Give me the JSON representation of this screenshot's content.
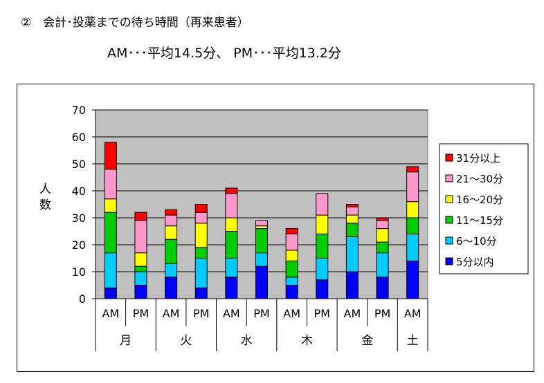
{
  "header": {
    "title": "②　会計･投薬までの待ち時間（再来患者）",
    "summary": "AM･･･平均14.5分、 PM･･･平均13.2分"
  },
  "chart_data": {
    "type": "bar",
    "stacked": true,
    "title": "",
    "ylabel": "人数",
    "ylim": [
      0,
      70
    ],
    "yticks": [
      0,
      10,
      20,
      30,
      40,
      50,
      60,
      70
    ],
    "grid": true,
    "legend_position": "right",
    "categories": [
      {
        "session": "AM",
        "day": "月"
      },
      {
        "session": "PM",
        "day": "月"
      },
      {
        "session": "AM",
        "day": "火"
      },
      {
        "session": "PM",
        "day": "火"
      },
      {
        "session": "AM",
        "day": "水"
      },
      {
        "session": "PM",
        "day": "水"
      },
      {
        "session": "AM",
        "day": "木"
      },
      {
        "session": "PM",
        "day": "木"
      },
      {
        "session": "AM",
        "day": "金"
      },
      {
        "session": "PM",
        "day": "金"
      },
      {
        "session": "AM",
        "day": "土"
      }
    ],
    "day_groups": [
      {
        "label": "月",
        "span": 2
      },
      {
        "label": "火",
        "span": 2
      },
      {
        "label": "水",
        "span": 2
      },
      {
        "label": "木",
        "span": 2
      },
      {
        "label": "金",
        "span": 2
      },
      {
        "label": "土",
        "span": 1
      }
    ],
    "series": [
      {
        "name": "5分以内",
        "color": "#0000ff",
        "values": [
          4,
          5,
          8,
          4,
          8,
          12,
          5,
          7,
          10,
          8,
          14
        ]
      },
      {
        "name": "6～10分",
        "color": "#00ccff",
        "values": [
          13,
          5,
          5,
          11,
          7,
          5,
          3,
          8,
          13,
          9,
          10
        ]
      },
      {
        "name": "11～15分",
        "color": "#00cc00",
        "values": [
          15,
          2,
          9,
          4,
          10,
          9,
          6,
          9,
          5,
          4,
          6
        ]
      },
      {
        "name": "16～20分",
        "color": "#ffff00",
        "values": [
          5,
          5,
          5,
          9,
          5,
          1,
          4,
          7,
          3,
          5,
          6
        ]
      },
      {
        "name": "21～30分",
        "color": "#ff99cc",
        "values": [
          11,
          12,
          4,
          4,
          9,
          2,
          6,
          8,
          3,
          3,
          11
        ]
      },
      {
        "name": "31分以上",
        "color": "#ff0000",
        "values": [
          10,
          3,
          2,
          3,
          2,
          0,
          2,
          0,
          1,
          1,
          2
        ]
      }
    ],
    "colors": {
      "plot_background": "#c0c0c0",
      "gridline": "#000000"
    }
  }
}
